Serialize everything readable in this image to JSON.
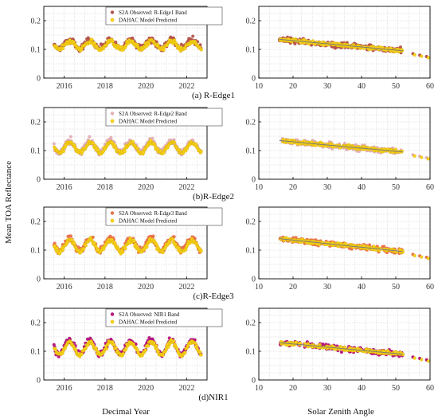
{
  "figure": {
    "ylabel": "Mean TOA Reflectance",
    "xlabel_left": "Decimal Year",
    "xlabel_right": "Solar Zenith Angle",
    "grid": true
  },
  "colors": {
    "predicted": "#f7d21a",
    "predicted_edge": "#d0a800",
    "fit_line": "#7a7a7a",
    "axis": "#000000",
    "grid": "#cccccc"
  },
  "chart_data": [
    {
      "type": "scatter",
      "panel": "(a) R-Edge1",
      "band_color": "#b5524c",
      "legend_position": "top",
      "series": [
        {
          "name": "S2A Observed: R-Edge1 Band",
          "color": "#b5524c"
        },
        {
          "name": "DAHAC Model Predicted",
          "color": "#f7d21a"
        }
      ],
      "time_plot": {
        "xlim": [
          2015,
          2023
        ],
        "xticks": [
          "2016",
          "2018",
          "2020",
          "2022"
        ],
        "ylim": [
          0,
          0.25
        ],
        "yticks": [
          "0",
          "0.1",
          "0.2"
        ],
        "x_start": 2015.5,
        "x_end": 2022.7,
        "obs_mean": 0.12,
        "pred_mean": 0.115,
        "amplitude": 0.015
      },
      "sza_plot": {
        "xlim": [
          10,
          60
        ],
        "xticks": [
          "10",
          "20",
          "30",
          "40",
          "50",
          "60"
        ],
        "ylim": [
          0,
          0.25
        ],
        "yticks": [
          "0",
          "0.1",
          "0.2"
        ],
        "trend": [
          [
            16,
            0.135
          ],
          [
            52,
            0.095
          ]
        ],
        "outliers": [
          [
            55,
            0.085
          ],
          [
            57,
            0.08
          ],
          [
            59,
            0.075
          ]
        ]
      }
    },
    {
      "type": "scatter",
      "panel": "(b)R-Edge2",
      "band_color": "#e2aeb4",
      "legend_position": "top",
      "series": [
        {
          "name": "S2A Observed: R-Edge2 Band",
          "color": "#e2aeb4"
        },
        {
          "name": "DAHAC Model Predicted",
          "color": "#f7d21a"
        }
      ],
      "time_plot": {
        "xlim": [
          2015,
          2023
        ],
        "xticks": [
          "2016",
          "2018",
          "2020",
          "2022"
        ],
        "ylim": [
          0,
          0.25
        ],
        "yticks": [
          "0",
          "0.1",
          "0.2"
        ],
        "x_start": 2015.5,
        "x_end": 2022.7,
        "obs_mean": 0.115,
        "pred_mean": 0.11,
        "amplitude": 0.02
      },
      "sza_plot": {
        "xlim": [
          10,
          60
        ],
        "xticks": [
          "10",
          "20",
          "30",
          "40",
          "50",
          "60"
        ],
        "ylim": [
          0,
          0.25
        ],
        "yticks": [
          "0",
          "0.1",
          "0.2"
        ],
        "trend": [
          [
            16,
            0.135
          ],
          [
            52,
            0.095
          ]
        ],
        "outliers": [
          [
            55,
            0.085
          ],
          [
            57,
            0.08
          ],
          [
            59,
            0.075
          ]
        ]
      }
    },
    {
      "type": "scatter",
      "panel": "(c)R-Edge3",
      "band_color": "#e8714a",
      "legend_position": "top",
      "series": [
        {
          "name": "S2A Observed: R-Edge3 Band",
          "color": "#e8714a"
        },
        {
          "name": "DAHAC Model Predicted",
          "color": "#f7d21a"
        }
      ],
      "time_plot": {
        "xlim": [
          2015,
          2023
        ],
        "xticks": [
          "2016",
          "2018",
          "2020",
          "2022"
        ],
        "ylim": [
          0,
          0.25
        ],
        "yticks": [
          "0",
          "0.1",
          "0.2"
        ],
        "x_start": 2015.5,
        "x_end": 2022.7,
        "obs_mean": 0.12,
        "pred_mean": 0.115,
        "amplitude": 0.022
      },
      "sza_plot": {
        "xlim": [
          10,
          60
        ],
        "xticks": [
          "10",
          "20",
          "30",
          "40",
          "50",
          "60"
        ],
        "ylim": [
          0,
          0.25
        ],
        "yticks": [
          "0",
          "0.1",
          "0.2"
        ],
        "trend": [
          [
            16,
            0.14
          ],
          [
            52,
            0.095
          ]
        ],
        "outliers": [
          [
            55,
            0.085
          ],
          [
            57,
            0.08
          ],
          [
            59,
            0.075
          ]
        ]
      }
    },
    {
      "type": "scatter",
      "panel": "(d)NIR1",
      "band_color": "#b3137e",
      "legend_position": "top",
      "series": [
        {
          "name": "S2A Observed: NIR1 Band",
          "color": "#b3137e"
        },
        {
          "name": "DAHAC Model Predicted",
          "color": "#f7d21a"
        }
      ],
      "time_plot": {
        "xlim": [
          2015,
          2023
        ],
        "xticks": [
          "2016",
          "2018",
          "2020",
          "2022"
        ],
        "ylim": [
          0,
          0.25
        ],
        "yticks": [
          "0",
          "0.1",
          "0.2"
        ],
        "x_start": 2015.5,
        "x_end": 2022.7,
        "obs_mean": 0.115,
        "pred_mean": 0.11,
        "amplitude": 0.025
      },
      "sza_plot": {
        "xlim": [
          10,
          60
        ],
        "xticks": [
          "10",
          "20",
          "30",
          "40",
          "50",
          "60"
        ],
        "ylim": [
          0,
          0.25
        ],
        "yticks": [
          "0",
          "0.1",
          "0.2"
        ],
        "trend": [
          [
            16,
            0.13
          ],
          [
            52,
            0.09
          ]
        ],
        "outliers": [
          [
            55,
            0.08
          ],
          [
            57,
            0.075
          ],
          [
            59,
            0.07
          ]
        ]
      }
    }
  ]
}
